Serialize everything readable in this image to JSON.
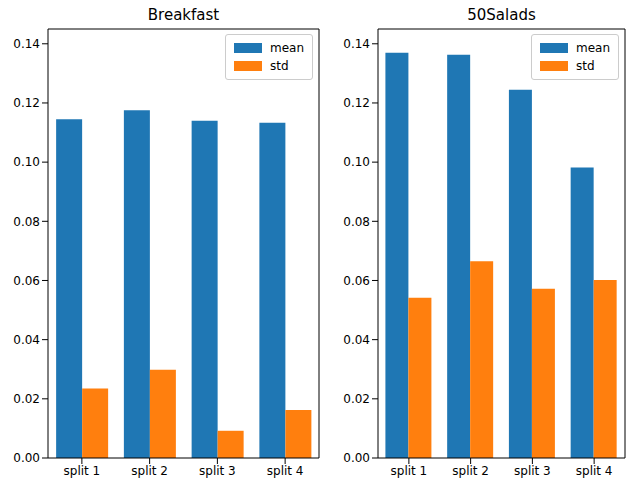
{
  "chart_data": [
    {
      "type": "bar",
      "title": "Breakfast",
      "categories": [
        "split 1",
        "split 2",
        "split 3",
        "split 4"
      ],
      "series": [
        {
          "name": "mean",
          "color": "#1f77b4",
          "values": [
            0.1145,
            0.1175,
            0.114,
            0.1133
          ]
        },
        {
          "name": "std",
          "color": "#ff7f0e",
          "values": [
            0.0235,
            0.0298,
            0.0092,
            0.0162
          ]
        }
      ],
      "ylim": [
        0,
        0.145
      ],
      "yticks": [
        {
          "value": 0,
          "label": "0.00"
        },
        0.02,
        0.04,
        0.06,
        0.08,
        {
          "value": 0.1,
          "label": "0.10"
        },
        0.12,
        0.14
      ],
      "legend": "upper right"
    },
    {
      "type": "bar",
      "title": "50Salads",
      "categories": [
        "split 1",
        "split 2",
        "split 3",
        "split 4"
      ],
      "series": [
        {
          "name": "mean",
          "color": "#1f77b4",
          "values": [
            0.137,
            0.1363,
            0.1245,
            0.0982
          ]
        },
        {
          "name": "std",
          "color": "#ff7f0e",
          "values": [
            0.0542,
            0.0665,
            0.0572,
            0.0602
          ]
        }
      ],
      "ylim": [
        0,
        0.145
      ],
      "yticks": [
        {
          "value": 0,
          "label": "0.00"
        },
        0.02,
        0.04,
        0.06,
        0.08,
        {
          "value": 0.1,
          "label": "0.10"
        },
        0.12,
        0.14
      ],
      "legend": "upper right"
    }
  ]
}
